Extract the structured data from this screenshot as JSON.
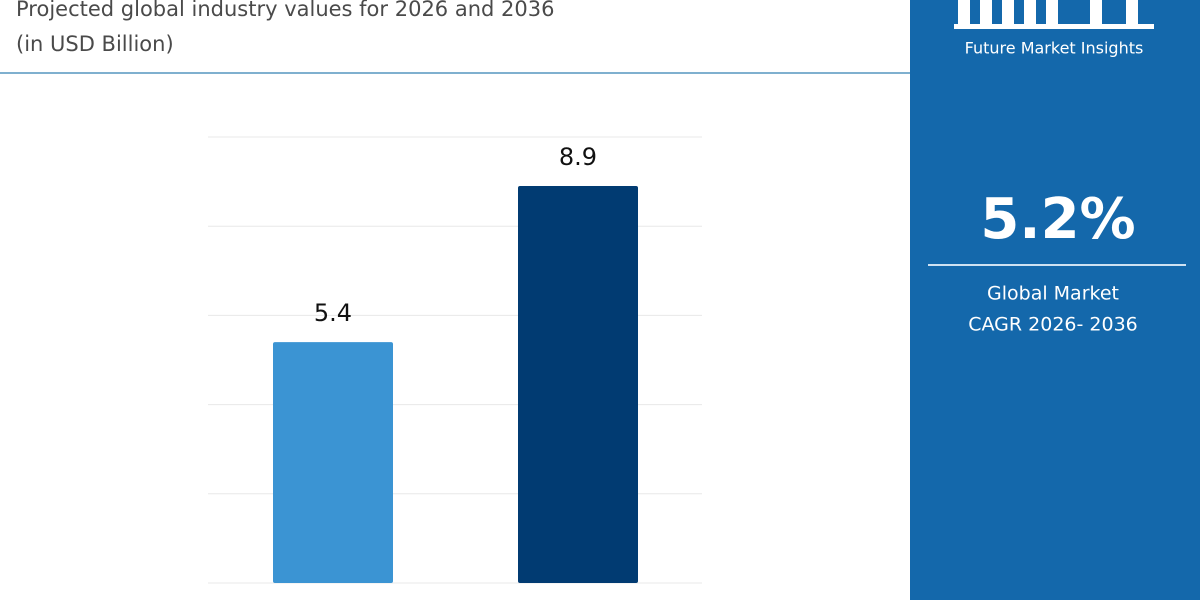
{
  "chart_data": {
    "type": "bar",
    "title": "Projected global industry values for 2026 and 2036",
    "subtitle": "(in USD Billion)",
    "categories": [
      null,
      null
    ],
    "values": [
      5.4,
      8.9
    ],
    "colors": [
      "#3b94d3",
      "#013b72"
    ],
    "ylim": [
      0,
      10
    ],
    "yticks": [
      0,
      2,
      4,
      6,
      8,
      10
    ],
    "grid": true
  },
  "side_panel": {
    "brand": "Future Market Insights",
    "cagr": "5.2%",
    "cagr_label": [
      "Global Market",
      "CAGR 2026- 2036"
    ]
  }
}
